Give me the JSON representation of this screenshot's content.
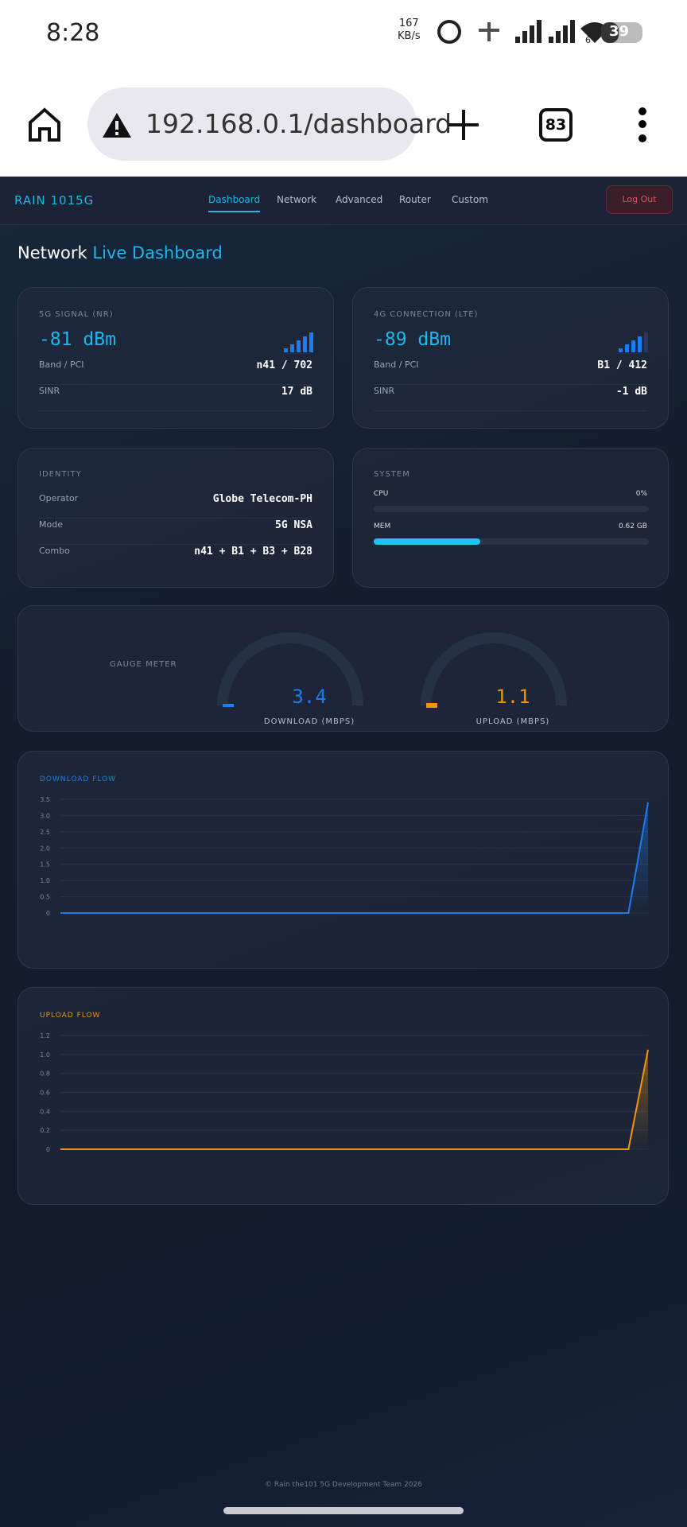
{
  "status_bar": {
    "time": "8:28",
    "speed": "167",
    "speed_unit": "KB/s",
    "wifi_badge": "6",
    "battery": "39"
  },
  "browser": {
    "url": "192.168.0.1/dashboard",
    "tabs": "83"
  },
  "nav": {
    "brand": "RAIN 1015G",
    "links": [
      "Dashboard",
      "Network",
      "Advanced",
      "Router",
      "Custom"
    ],
    "logout": "Log Out"
  },
  "heading": {
    "first": "Network",
    "second": "Live Dashboard"
  },
  "cards": {
    "nr": {
      "label": "5G SIGNAL (NR)",
      "value": "-81 dBm",
      "rows": [
        [
          "Band / PCI",
          "n41 / 702"
        ],
        [
          "SINR",
          "17 dB"
        ]
      ]
    },
    "lte": {
      "label": "4G CONNECTION (LTE)",
      "value": "-89 dBm",
      "rows": [
        [
          "Band / PCI",
          "B1 / 412"
        ],
        [
          "SINR",
          "-1 dB"
        ]
      ]
    },
    "identity": {
      "label": "IDENTITY",
      "rows": [
        [
          "Operator",
          "Globe Telecom-PH"
        ],
        [
          "Mode",
          "5G NSA"
        ],
        [
          "Combo",
          "n41 + B1 + B3 + B28"
        ]
      ]
    },
    "system": {
      "label": "SYSTEM",
      "cpu_label": "CPU",
      "cpu": "0%",
      "mem_label": "MEM",
      "mem": "0.62 GB"
    }
  },
  "gauge": {
    "title": "GAUGE METER",
    "download": "3.4",
    "download_label": "DOWNLOAD (MBPS)",
    "upload": "1.1",
    "upload_label": "UPLOAD (MBPS)"
  },
  "chart_data": [
    {
      "type": "line",
      "title": "DOWNLOAD FLOW",
      "color": "#1e7bf0",
      "ylim": [
        0,
        3.5
      ],
      "yticks": [
        {
          "value": 0,
          "label": "0"
        },
        {
          "value": 0.5,
          "label": "0.5"
        },
        {
          "value": 1,
          "label": "1.0"
        },
        {
          "value": 1.5,
          "label": "1.5"
        },
        {
          "value": 2,
          "label": "2.0"
        },
        {
          "value": 2.5,
          "label": "2.5"
        },
        {
          "value": 3,
          "label": "3.0"
        },
        {
          "value": 3.5,
          "label": "3.5"
        }
      ],
      "series": [
        {
          "name": "Download",
          "color": "#1e7bf0",
          "values": [
            0,
            0,
            0,
            0,
            0,
            0,
            0,
            0,
            0,
            0,
            0,
            0,
            0,
            0,
            0,
            0,
            0,
            0,
            0,
            0,
            0,
            0,
            0,
            0,
            0,
            0,
            0,
            0,
            0,
            0,
            3.4
          ]
        }
      ]
    },
    {
      "type": "line",
      "title": "UPLOAD FLOW",
      "color": "#f0930e",
      "ylim": [
        0,
        1.2
      ],
      "yticks": [
        {
          "value": 0,
          "label": "0"
        },
        {
          "value": 0.2,
          "label": "0.2"
        },
        {
          "value": 0.4,
          "label": "0.4"
        },
        {
          "value": 0.6,
          "label": "0.6"
        },
        {
          "value": 0.8,
          "label": "0.8"
        },
        {
          "value": 1,
          "label": "1.0"
        },
        {
          "value": 1.2,
          "label": "1.2"
        }
      ],
      "series": [
        {
          "name": "Upload",
          "color": "#f0930e",
          "values": [
            0,
            0,
            0,
            0,
            0,
            0,
            0,
            0,
            0,
            0,
            0,
            0,
            0,
            0,
            0,
            0,
            0,
            0,
            0,
            0,
            0,
            0,
            0,
            0,
            0,
            0,
            0,
            0,
            0,
            0,
            1.05
          ]
        }
      ]
    }
  ],
  "footer": "© Rain the101 5G Development Team 2026"
}
